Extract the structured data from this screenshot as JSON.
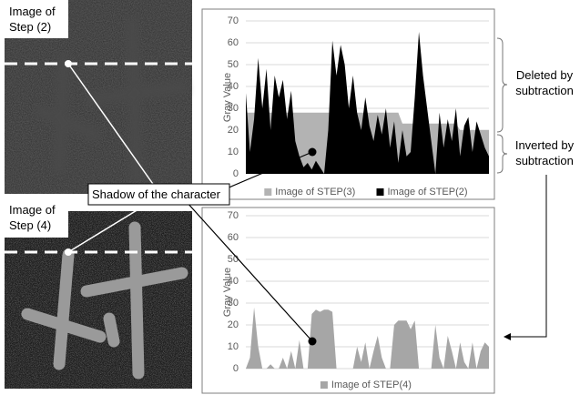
{
  "chart_data": [
    {
      "type": "area",
      "ylabel": "Gray Value",
      "ylim": [
        0,
        70
      ],
      "yticks": [
        0,
        10,
        20,
        30,
        40,
        50,
        60,
        70
      ],
      "grid": true,
      "series": [
        {
          "name": "Image of STEP(3)",
          "color": "#b3b3b3",
          "values": [
            28,
            28,
            28,
            28,
            28,
            28,
            28,
            28,
            28,
            28,
            28,
            28,
            28,
            28,
            28,
            28,
            28,
            28,
            28,
            28,
            28,
            28,
            28,
            28,
            28,
            28,
            28,
            28,
            28,
            28,
            28,
            28,
            28,
            28,
            28,
            28,
            28,
            28,
            23,
            23,
            23,
            23,
            23,
            23,
            23,
            23,
            23,
            23,
            23,
            23,
            23,
            23,
            20,
            20,
            20,
            20,
            20,
            20,
            20,
            20
          ]
        },
        {
          "name": "Image of STEP(2)",
          "color": "#000000",
          "values": [
            37,
            10,
            25,
            53,
            30,
            48,
            20,
            45,
            35,
            43,
            25,
            38,
            15,
            8,
            3,
            5,
            2,
            6,
            3,
            0,
            20,
            61,
            45,
            59,
            50,
            30,
            45,
            28,
            20,
            35,
            22,
            15,
            27,
            18,
            30,
            12,
            24,
            5,
            20,
            8,
            10,
            35,
            65,
            45,
            30,
            15,
            0,
            28,
            12,
            25,
            15,
            30,
            8,
            22,
            26,
            10,
            24,
            18,
            12,
            8
          ]
        }
      ]
    },
    {
      "type": "area",
      "ylabel": "Gray Value",
      "ylim": [
        0,
        70
      ],
      "yticks": [
        0,
        10,
        20,
        30,
        40,
        50,
        60,
        70
      ],
      "grid": true,
      "series": [
        {
          "name": "Image of STEP(4)",
          "color": "#a6a6a6",
          "values": [
            0,
            5,
            28,
            10,
            0,
            0,
            2,
            0,
            0,
            5,
            0,
            8,
            0,
            13,
            0,
            0,
            25,
            27,
            26,
            27,
            27,
            26,
            0,
            0,
            0,
            0,
            0,
            10,
            3,
            12,
            0,
            8,
            15,
            5,
            0,
            0,
            20,
            22,
            22,
            22,
            18,
            22,
            0,
            0,
            0,
            0,
            20,
            5,
            0,
            15,
            8,
            0,
            12,
            3,
            0,
            12,
            0,
            8,
            12,
            10
          ]
        }
      ]
    }
  ],
  "annotations": {
    "photo_top": "Image of\nStep (2)",
    "photo_bottom": "Image of\nStep (4)",
    "shadow": "Shadow of the character",
    "deleted": "Deleted by\nsubtraction",
    "inverted": "Inverted by\nsubtraction"
  }
}
